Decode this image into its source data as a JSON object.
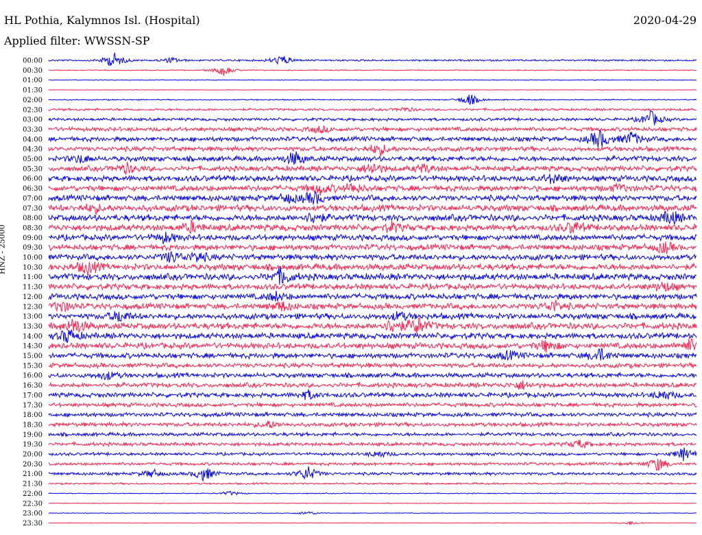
{
  "header": {
    "station": "HL Pothia, Kalymnos Isl. (Hospital)",
    "date": "2020-04-29",
    "filter": "Applied filter: WWSSN-SP"
  },
  "chart_data": {
    "type": "line",
    "title": "HL Pothia, Kalymnos Isl. (Hospital)",
    "date": "2020-04-29",
    "subtitle": "Applied filter: WWSSN-SP",
    "ylabel": "HNZ - 25000",
    "xlabel": "",
    "grid": false,
    "colors": {
      "even_rows": "#0000ee",
      "odd_rows": "#ff1f4b"
    },
    "row_labels": [
      "00:00",
      "00:30",
      "01:00",
      "01:30",
      "02:00",
      "02:30",
      "03:00",
      "03:30",
      "04:00",
      "04:30",
      "05:00",
      "05:30",
      "06:00",
      "06:30",
      "07:00",
      "07:30",
      "08:00",
      "08:30",
      "09:00",
      "09:30",
      "10:00",
      "10:30",
      "11:00",
      "11:30",
      "12:00",
      "12:30",
      "13:00",
      "13:30",
      "14:00",
      "14:30",
      "15:00",
      "15:30",
      "16:00",
      "16:30",
      "17:00",
      "17:30",
      "18:00",
      "18:30",
      "19:00",
      "19:30",
      "20:00",
      "20:30",
      "21:00",
      "21:30",
      "22:00",
      "22:30",
      "23:00",
      "23:30"
    ],
    "series": [
      {
        "label": "00:00",
        "noise": 1.5,
        "events": [
          [
            0.1,
            12
          ],
          [
            0.36,
            8
          ],
          [
            0.19,
            4
          ]
        ]
      },
      {
        "label": "00:30",
        "noise": 0.8,
        "events": [
          [
            0.27,
            8
          ]
        ]
      },
      {
        "label": "01:00",
        "noise": 0.6,
        "events": []
      },
      {
        "label": "01:30",
        "noise": 0.5,
        "events": []
      },
      {
        "label": "02:00",
        "noise": 1.0,
        "events": [
          [
            0.65,
            9
          ]
        ]
      },
      {
        "label": "02:30",
        "noise": 2.0,
        "events": [
          [
            0.55,
            3
          ]
        ]
      },
      {
        "label": "03:00",
        "noise": 2.5,
        "events": [
          [
            0.93,
            12
          ]
        ]
      },
      {
        "label": "03:30",
        "noise": 3.5,
        "events": [
          [
            0.42,
            5
          ]
        ]
      },
      {
        "label": "04:00",
        "noise": 4.0,
        "events": [
          [
            0.85,
            14
          ],
          [
            0.9,
            10
          ]
        ]
      },
      {
        "label": "04:30",
        "noise": 4.0,
        "events": [
          [
            0.51,
            9
          ]
        ]
      },
      {
        "label": "05:00",
        "noise": 4.5,
        "events": [
          [
            0.38,
            10
          ],
          [
            0.05,
            6
          ]
        ]
      },
      {
        "label": "05:30",
        "noise": 4.5,
        "events": [
          [
            0.12,
            7
          ],
          [
            0.5,
            9
          ],
          [
            0.58,
            6
          ]
        ]
      },
      {
        "label": "06:00",
        "noise": 5.0,
        "events": [
          [
            0.78,
            7
          ]
        ]
      },
      {
        "label": "06:30",
        "noise": 5.0,
        "events": [
          [
            0.42,
            8
          ],
          [
            0.47,
            7
          ],
          [
            0.88,
            5
          ]
        ]
      },
      {
        "label": "07:00",
        "noise": 5.0,
        "events": [
          [
            0.41,
            9
          ],
          [
            0.37,
            6
          ]
        ]
      },
      {
        "label": "07:30",
        "noise": 5.5,
        "events": [
          [
            0.07,
            6
          ]
        ]
      },
      {
        "label": "08:00",
        "noise": 5.5,
        "events": [
          [
            0.41,
            8
          ],
          [
            0.96,
            10
          ]
        ]
      },
      {
        "label": "08:30",
        "noise": 5.5,
        "events": [
          [
            0.22,
            7
          ],
          [
            0.53,
            6
          ],
          [
            0.81,
            8
          ]
        ]
      },
      {
        "label": "09:00",
        "noise": 5.0,
        "events": [
          [
            0.18,
            7
          ]
        ]
      },
      {
        "label": "09:30",
        "noise": 5.0,
        "events": [
          [
            0.95,
            8
          ]
        ]
      },
      {
        "label": "10:00",
        "noise": 5.0,
        "events": [
          [
            0.19,
            8
          ],
          [
            0.23,
            7
          ]
        ]
      },
      {
        "label": "10:30",
        "noise": 5.5,
        "events": [
          [
            0.06,
            10
          ]
        ]
      },
      {
        "label": "11:00",
        "noise": 5.5,
        "events": [
          [
            0.36,
            12
          ]
        ]
      },
      {
        "label": "11:30",
        "noise": 5.0,
        "events": [
          [
            0.95,
            7
          ]
        ]
      },
      {
        "label": "12:00",
        "noise": 5.0,
        "events": [
          [
            0.35,
            6
          ]
        ]
      },
      {
        "label": "12:30",
        "noise": 5.0,
        "events": [
          [
            0.02,
            8
          ],
          [
            0.36,
            7
          ],
          [
            0.78,
            8
          ]
        ]
      },
      {
        "label": "13:00",
        "noise": 5.0,
        "events": [
          [
            0.11,
            8
          ],
          [
            0.54,
            6
          ]
        ]
      },
      {
        "label": "13:30",
        "noise": 5.5,
        "events": [
          [
            0.04,
            12
          ],
          [
            0.57,
            12
          ],
          [
            0.53,
            9
          ]
        ]
      },
      {
        "label": "14:00",
        "noise": 5.0,
        "events": [
          [
            0.03,
            10
          ]
        ]
      },
      {
        "label": "14:30",
        "noise": 5.0,
        "events": [
          [
            0.77,
            9
          ],
          [
            0.99,
            9
          ]
        ]
      },
      {
        "label": "15:00",
        "noise": 4.5,
        "events": [
          [
            0.85,
            10
          ],
          [
            0.71,
            6
          ]
        ]
      },
      {
        "label": "15:30",
        "noise": 4.0,
        "events": []
      },
      {
        "label": "16:00",
        "noise": 4.0,
        "events": [
          [
            0.09,
            6
          ]
        ]
      },
      {
        "label": "16:30",
        "noise": 4.0,
        "events": [
          [
            0.73,
            6
          ]
        ]
      },
      {
        "label": "17:00",
        "noise": 4.0,
        "events": [
          [
            0.4,
            6
          ],
          [
            0.95,
            7
          ]
        ]
      },
      {
        "label": "17:30",
        "noise": 3.5,
        "events": []
      },
      {
        "label": "18:00",
        "noise": 3.5,
        "events": []
      },
      {
        "label": "18:30",
        "noise": 3.5,
        "events": [
          [
            0.34,
            5
          ]
        ]
      },
      {
        "label": "19:00",
        "noise": 3.0,
        "events": []
      },
      {
        "label": "19:30",
        "noise": 3.0,
        "events": [
          [
            0.82,
            6
          ]
        ]
      },
      {
        "label": "20:00",
        "noise": 2.5,
        "events": [
          [
            0.98,
            9
          ],
          [
            0.51,
            5
          ]
        ]
      },
      {
        "label": "20:30",
        "noise": 2.5,
        "events": [
          [
            0.94,
            10
          ]
        ]
      },
      {
        "label": "21:00",
        "noise": 2.5,
        "events": [
          [
            0.16,
            6
          ],
          [
            0.24,
            11
          ],
          [
            0.4,
            11
          ]
        ]
      },
      {
        "label": "21:30",
        "noise": 1.5,
        "events": []
      },
      {
        "label": "22:00",
        "noise": 0.8,
        "events": [
          [
            0.28,
            3
          ]
        ]
      },
      {
        "label": "22:30",
        "noise": 0.6,
        "events": []
      },
      {
        "label": "23:00",
        "noise": 0.6,
        "events": [
          [
            0.4,
            3
          ]
        ]
      },
      {
        "label": "23:30",
        "noise": 0.5,
        "events": [
          [
            0.9,
            3
          ]
        ]
      }
    ]
  }
}
